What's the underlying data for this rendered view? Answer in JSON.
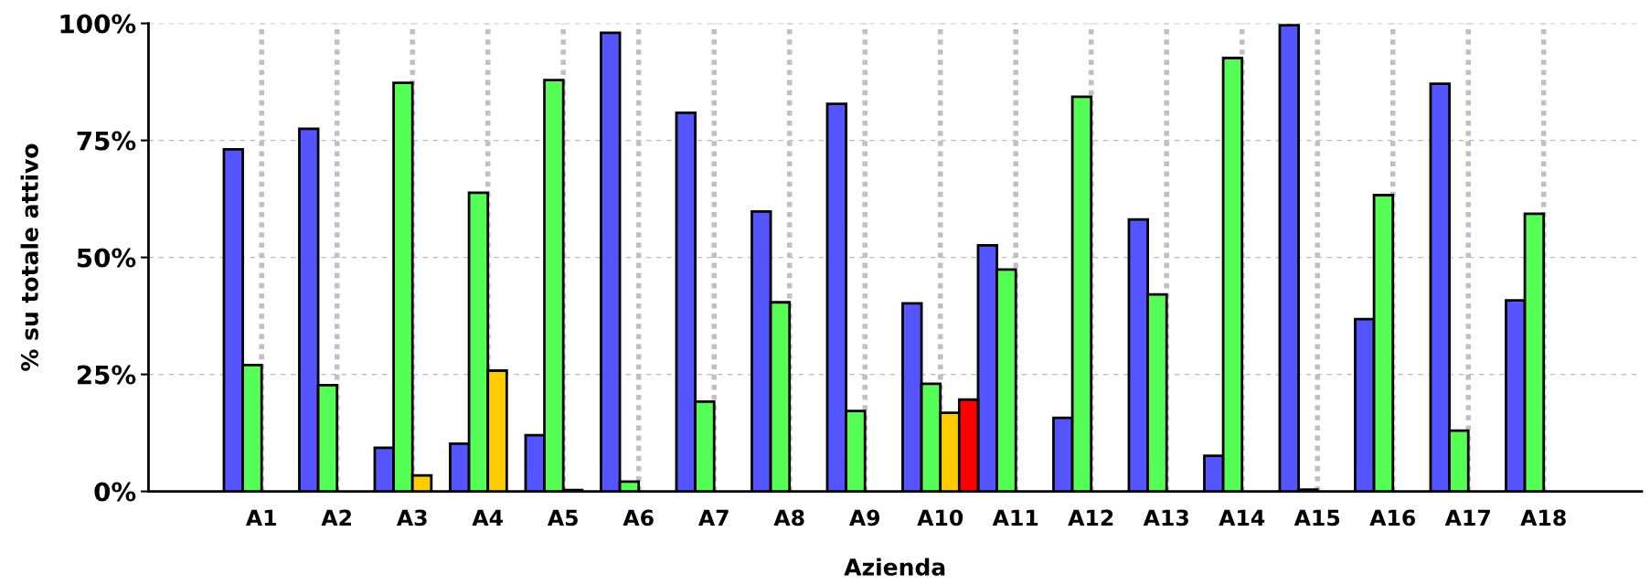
{
  "chart_data": {
    "type": "bar",
    "xlabel": "Azienda",
    "ylabel": "% su totale attivo",
    "categories": [
      "A1",
      "A2",
      "A3",
      "A4",
      "A5",
      "A6",
      "A7",
      "A8",
      "A9",
      "A10",
      "A11",
      "A12",
      "A13",
      "A14",
      "A15",
      "A16",
      "A17",
      "A18"
    ],
    "series": [
      {
        "color": "#5555ff",
        "values": [
          73.1,
          77.5,
          9.3,
          10.2,
          12.0,
          98.0,
          80.9,
          59.8,
          82.8,
          40.2,
          52.6,
          15.7,
          58.1,
          7.6,
          99.6,
          36.8,
          87.1,
          40.8
        ]
      },
      {
        "color": "#55ff55",
        "values": [
          27.0,
          22.7,
          87.3,
          63.8,
          87.9,
          2.1,
          19.2,
          40.4,
          17.2,
          23.0,
          47.4,
          84.3,
          42.1,
          92.6,
          0.4,
          63.3,
          13.0,
          59.3
        ]
      },
      {
        "color": "#ffcc00",
        "values": [
          null,
          null,
          3.4,
          25.8,
          0.3,
          null,
          null,
          null,
          null,
          16.8,
          null,
          null,
          null,
          null,
          null,
          null,
          null,
          null
        ]
      },
      {
        "color": "#ff0000",
        "values": [
          null,
          null,
          null,
          null,
          null,
          null,
          null,
          null,
          null,
          19.6,
          null,
          null,
          null,
          null,
          null,
          null,
          null,
          null
        ]
      }
    ],
    "ylim": [
      0,
      100
    ],
    "yticks": [
      {
        "value": 0,
        "label": "0%"
      },
      {
        "value": 25,
        "label": "25%"
      },
      {
        "value": 50,
        "label": "50%"
      },
      {
        "value": 75,
        "label": "75%"
      },
      {
        "value": 100,
        "label": "100%"
      }
    ],
    "grid": true
  }
}
